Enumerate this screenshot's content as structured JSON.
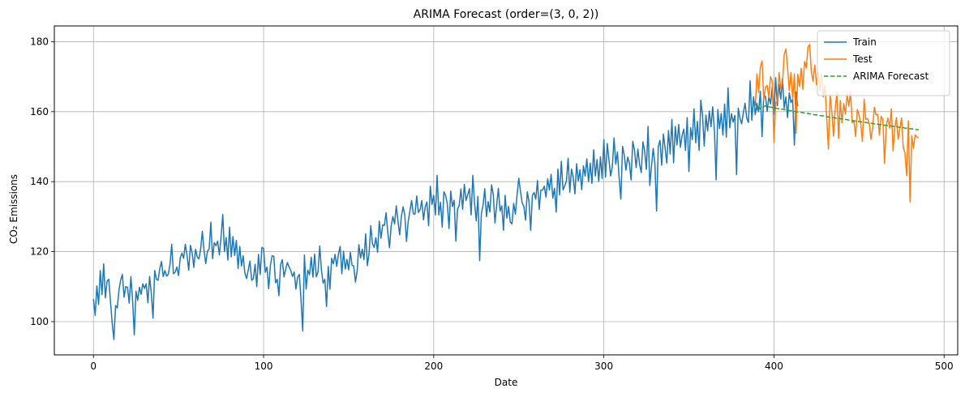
{
  "chart_data": {
    "type": "line",
    "title": "ARIMA Forecast (order=(3, 0, 2))",
    "xlabel": "Date",
    "ylabel": "CO₂ Emissions",
    "xlim": [
      -23,
      508
    ],
    "ylim": [
      90.5,
      184.5
    ],
    "x_ticks": [
      0,
      100,
      200,
      300,
      400,
      500
    ],
    "y_ticks": [
      100,
      120,
      140,
      160,
      180
    ],
    "grid": true,
    "legend_position": "top-right",
    "series": [
      {
        "name": "Train",
        "color": "#1f77b4",
        "style": "solid",
        "x_start": 0,
        "values": [
          106.5,
          101.8,
          110.2,
          104.9,
          114.6,
          107.7,
          116.5,
          106.8,
          111.6,
          112.1,
          105.8,
          99.6,
          94.9,
          104.6,
          103.9,
          109.1,
          111.9,
          113.5,
          107.0,
          110.0,
          109.8,
          105.3,
          112.8,
          106.2,
          96.2,
          108.7,
          106.1,
          109.8,
          107.8,
          110.8,
          109.5,
          110.8,
          105.4,
          112.9,
          108.1,
          101.0,
          114.6,
          112.1,
          111.8,
          115.2,
          117.2,
          112.9,
          114.6,
          113.0,
          113.6,
          116.4,
          122.1,
          113.7,
          114.1,
          115.6,
          113.2,
          118.2,
          119.6,
          118.1,
          122.1,
          118.9,
          114.7,
          121.8,
          119.7,
          115.5,
          120.7,
          118.5,
          117.9,
          120.7,
          125.8,
          120.3,
          116.6,
          120.1,
          120.8,
          128.4,
          118.0,
          122.6,
          121.7,
          123.0,
          119.1,
          124.1,
          130.6,
          120.0,
          124.0,
          117.6,
          127.0,
          118.5,
          124.3,
          118.9,
          123.2,
          115.2,
          121.5,
          115.9,
          118.8,
          113.9,
          112.3,
          114.8,
          117.3,
          111.8,
          112.3,
          116.4,
          110.0,
          119.2,
          113.5,
          121.2,
          120.9,
          114.1,
          115.6,
          109.4,
          116.1,
          118.8,
          118.7,
          111.1,
          112.1,
          107.4,
          116.3,
          117.7,
          112.8,
          115.0,
          116.9,
          115.6,
          114.6,
          112.9,
          114.2,
          109.3,
          112.7,
          113.5,
          106.3,
          97.3,
          119.0,
          109.3,
          114.7,
          113.4,
          118.4,
          112.7,
          119.3,
          112.8,
          114.2,
          121.6,
          114.8,
          111.0,
          112.1,
          104.3,
          115.8,
          109.3,
          118.1,
          116.5,
          119.2,
          115.8,
          119.3,
          121.5,
          113.7,
          120.1,
          115.0,
          117.8,
          114.8,
          119.8,
          116.1,
          115.9,
          111.3,
          114.5,
          122.0,
          118.2,
          120.7,
          117.7,
          125.1,
          116.0,
          119.5,
          127.4,
          122.3,
          121.2,
          124.0,
          119.8,
          128.7,
          123.8,
          127.6,
          127.5,
          131.1,
          125.6,
          121.1,
          127.4,
          130.0,
          127.9,
          133.1,
          128.7,
          124.8,
          130.1,
          132.8,
          130.5,
          122.9,
          128.6,
          131.6,
          134.6,
          130.8,
          130.7,
          135.9,
          131.2,
          132.0,
          134.6,
          129.1,
          132.8,
          134.2,
          127.4,
          138.7,
          133.5,
          136.1,
          130.5,
          141.8,
          130.5,
          134.1,
          127.0,
          137.1,
          136.1,
          133.6,
          126.6,
          137.3,
          132.9,
          134.7,
          123.0,
          132.1,
          133.2,
          137.9,
          132.1,
          139.2,
          134.6,
          136.3,
          138.0,
          130.5,
          141.8,
          133.9,
          128.8,
          135.8,
          117.4,
          130.9,
          133.2,
          138.0,
          130.0,
          134.3,
          131.3,
          139.1,
          136.3,
          128.2,
          133.3,
          138.1,
          131.6,
          133.1,
          126.1,
          136.1,
          129.6,
          132.9,
          128.5,
          127.9,
          133.8,
          130.7,
          136.2,
          141.0,
          137.2,
          133.9,
          132.9,
          129.0,
          137.1,
          134.4,
          126.1,
          136.1,
          136.9,
          135.0,
          140.3,
          132.1,
          137.6,
          137.6,
          138.7,
          135.6,
          140.8,
          137.6,
          142.1,
          135.3,
          138.1,
          131.3,
          143.6,
          136.2,
          145.8,
          137.7,
          138.8,
          140.1,
          146.7,
          137.0,
          143.6,
          141.3,
          136.5,
          145.1,
          140.2,
          143.4,
          137.7,
          144.5,
          141.6,
          146.5,
          140.0,
          145.3,
          139.5,
          149.1,
          141.6,
          146.3,
          140.1,
          147.1,
          140.9,
          152.0,
          141.3,
          150.9,
          146.3,
          141.6,
          144.3,
          152.5,
          145.0,
          148.5,
          141.0,
          135.0,
          150.1,
          147.6,
          143.3,
          147.0,
          145.4,
          140.5,
          151.5,
          149.1,
          144.0,
          149.3,
          144.9,
          142.6,
          151.4,
          148.7,
          143.5,
          155.8,
          138.9,
          144.3,
          149.5,
          145.2,
          131.6,
          150.0,
          151.8,
          144.7,
          153.6,
          149.6,
          145.3,
          154.6,
          147.9,
          157.8,
          145.4,
          155.8,
          150.5,
          156.3,
          149.8,
          153.2,
          155.0,
          148.9,
          158.3,
          142.9,
          155.4,
          152.0,
          160.8,
          151.1,
          157.2,
          148.9,
          163.3,
          158.9,
          150.2,
          159.0,
          154.5,
          160.2,
          155.7,
          161.4,
          154.6,
          140.5,
          160.6,
          155.2,
          159.5,
          153.3,
          162.2,
          152.7,
          166.8,
          155.4,
          159.4,
          157.0,
          158.9,
          142.0,
          161.0,
          158.2,
          156.5,
          159.7,
          162.4,
          158.2,
          156.9,
          168.8,
          157.5,
          164.2,
          159.2,
          162.3,
          160.0,
          165.8,
          152.9,
          164.8,
          164.4,
          160.1,
          164.3,
          162.2,
          167.1,
          159.2,
          169.7,
          161.7,
          167.7,
          163.6,
          169.4,
          161.0,
          164.2,
          158.3,
          165.4,
          162.6,
          163.6,
          150.4,
          165.6,
          161.6
        ]
      },
      {
        "name": "Test",
        "color": "#ff7f0e",
        "style": "solid",
        "x_start": 389,
        "values": [
          161.6,
          170.8,
          165.5,
          172.8,
          174.5,
          163.2,
          167.0,
          167.5,
          164.1,
          170.0,
          168.7,
          151.2,
          162.7,
          162.8,
          171.2,
          166.5,
          168.0,
          176.3,
          177.9,
          172.5,
          166.0,
          171.2,
          163.4,
          170.8,
          153.8,
          170.7,
          167.2,
          172.4,
          166.4,
          174.3,
          172.5,
          178.5,
          179.2,
          171.2,
          168.7,
          173.3,
          167.7,
          171.4,
          166.1,
          170.9,
          164.2,
          167.4,
          158.2,
          149.3,
          164.9,
          160.0,
          153.0,
          161.0,
          165.4,
          152.3,
          163.2,
          156.8,
          162.3,
          159.3,
          165.0,
          161.6,
          165.5,
          156.8,
          157.4,
          152.9,
          160.6,
          159.1,
          156.6,
          151.5,
          163.5,
          157.8,
          158.0,
          156.7,
          152.1,
          155.4,
          161.2,
          159.1,
          159.1,
          153.3,
          158.7,
          157.8,
          145.2,
          156.1,
          158.2,
          155.3,
          160.8,
          148.8,
          155.3,
          158.3,
          152.1,
          155.1,
          158.2,
          149.8,
          148.2,
          141.7,
          157.4,
          134.2,
          153.1,
          149.6,
          153.4,
          152.8,
          152.5
        ]
      },
      {
        "name": "ARIMA Forecast",
        "color": "#2ca02c",
        "style": "dashed",
        "x_start": 389,
        "values": [
          163.0,
          160.5,
          161.3,
          160.8,
          161.8,
          161.4,
          161.7,
          161.6,
          161.4,
          161.3,
          161.2,
          161.1,
          161.0,
          160.9,
          160.8,
          160.7,
          160.7,
          160.6,
          160.5,
          160.4,
          160.3,
          160.3,
          160.2,
          160.1,
          160.0,
          159.9,
          159.9,
          159.8,
          159.7,
          159.6,
          159.5,
          159.5,
          159.4,
          159.3,
          159.2,
          159.1,
          159.1,
          159.0,
          158.9,
          158.8,
          158.8,
          158.7,
          158.6,
          158.5,
          158.4,
          158.4,
          158.3,
          158.2,
          158.1,
          158.1,
          158.0,
          157.9,
          157.8,
          157.8,
          157.7,
          157.6,
          157.5,
          157.5,
          157.4,
          157.3,
          157.2,
          157.2,
          157.1,
          157.0,
          157.0,
          156.9,
          156.8,
          156.7,
          156.7,
          156.6,
          156.5,
          156.5,
          156.4,
          156.3,
          156.3,
          156.2,
          156.1,
          156.1,
          156.0,
          155.9,
          155.9,
          155.8,
          155.7,
          155.7,
          155.6,
          155.5,
          155.5,
          155.4,
          155.3,
          155.3,
          155.2,
          155.1,
          155.1,
          155.0,
          154.9,
          154.9,
          154.8
        ]
      }
    ]
  }
}
